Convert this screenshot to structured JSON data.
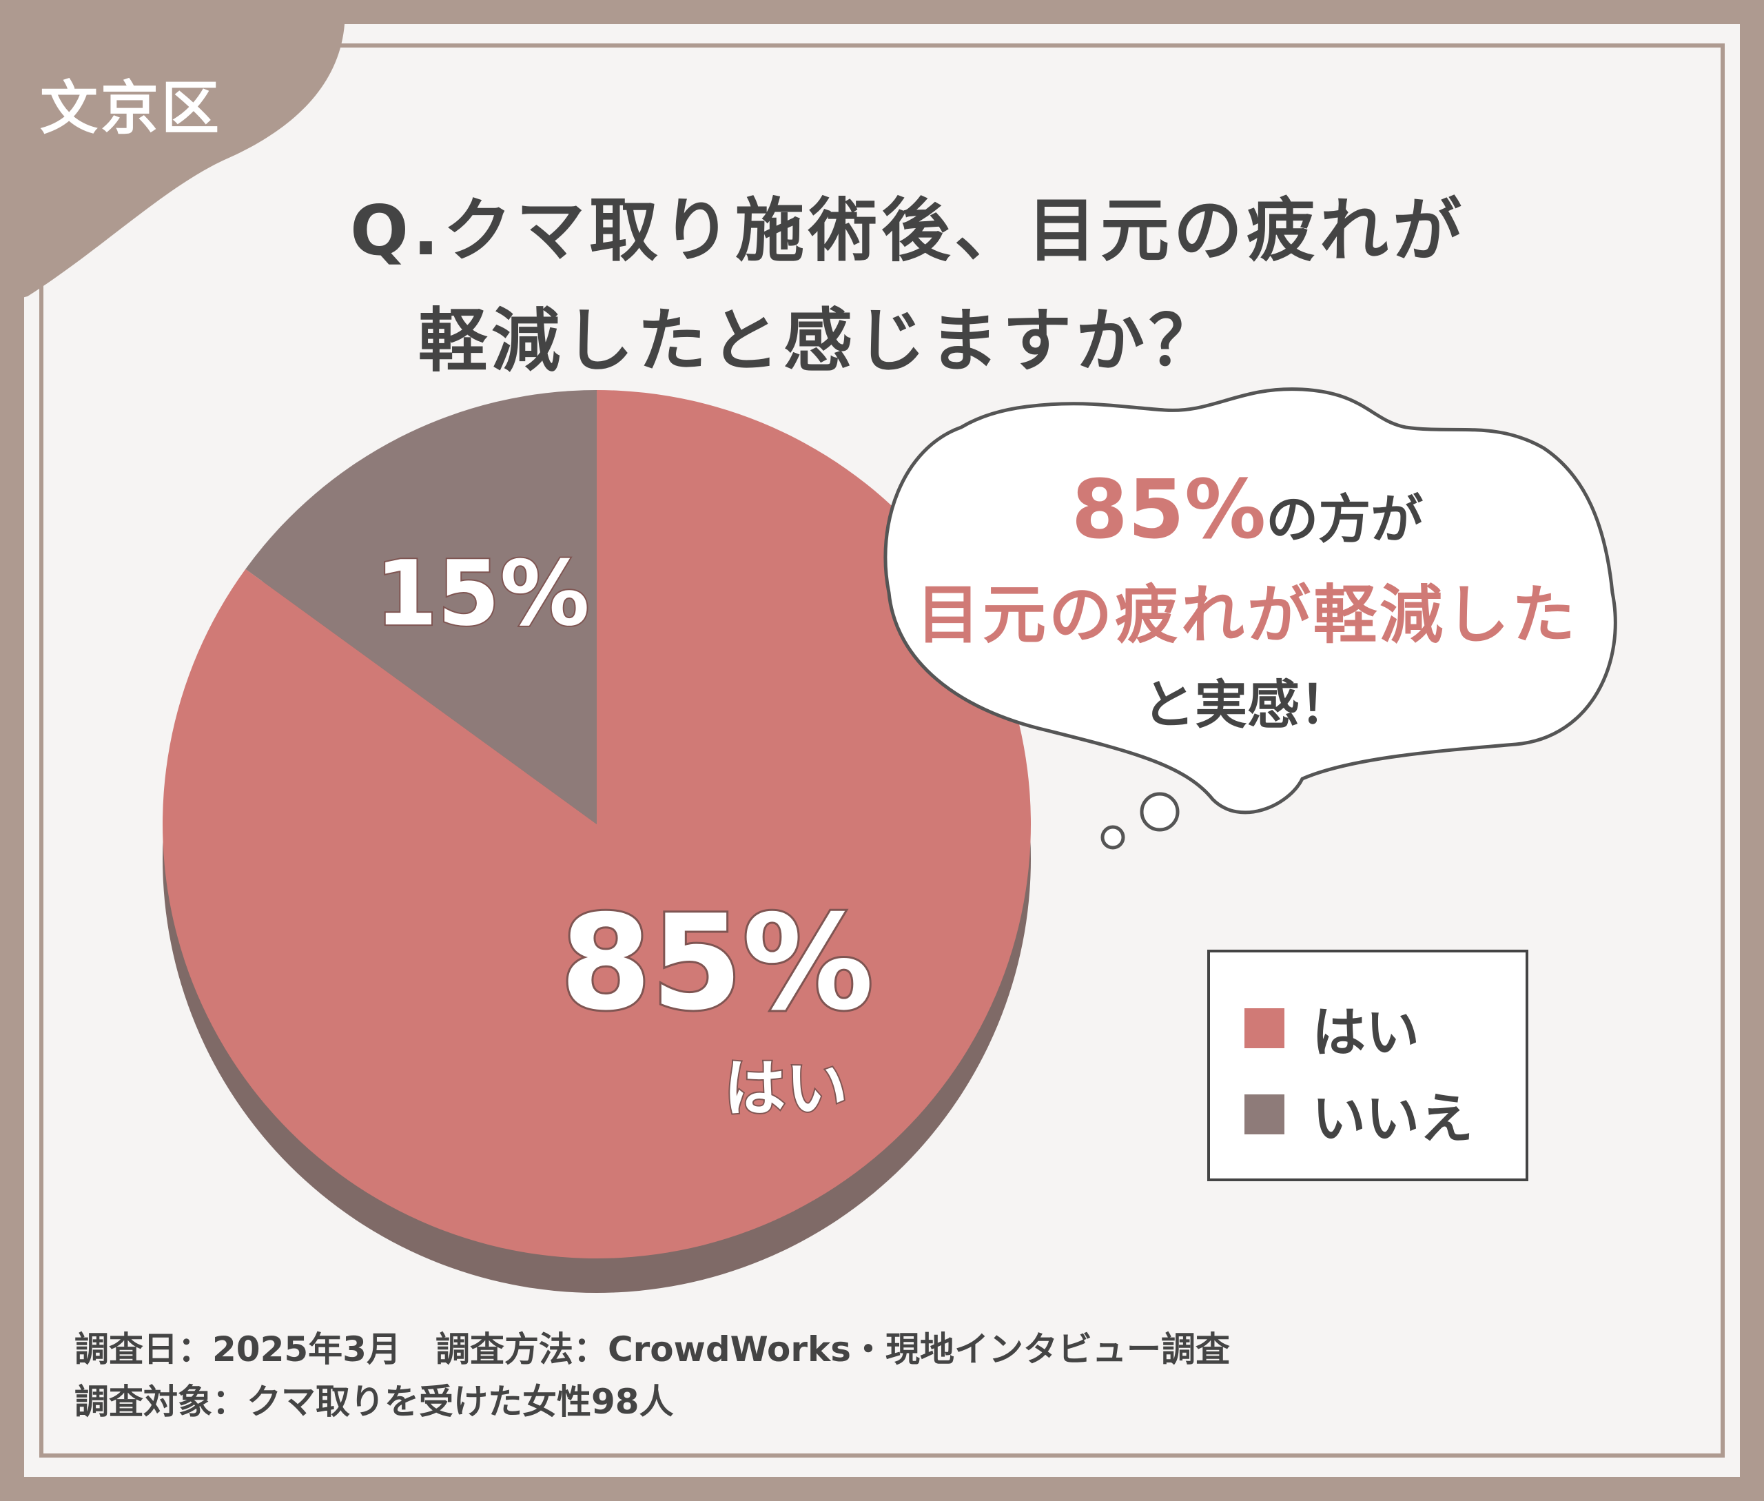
{
  "region": "文京区",
  "question": {
    "line1": "Q.クマ取り施術後、目元の疲れが",
    "line2": "軽減したと感じますか？"
  },
  "bubble": {
    "percent": "85%",
    "after_percent": "の方が",
    "highlight": "目元の疲れが軽減した",
    "closing": "と実感！"
  },
  "legend": {
    "items": [
      {
        "label": "はい",
        "color": "#d07a76"
      },
      {
        "label": "いいえ",
        "color": "#8e7b79"
      }
    ]
  },
  "footer": {
    "line1": "調査日：2025年3月　調査方法：CrowdWorks・現地インタビュー調査",
    "line2": "調査対象：クマ取りを受けた女性98人"
  },
  "chart_data": {
    "type": "pie",
    "categories": [
      "はい",
      "いいえ"
    ],
    "values": [
      85,
      15
    ],
    "labels": [
      "85%",
      "15%"
    ],
    "slice_label": "はい",
    "colors": [
      "#d07a76",
      "#8e7b79"
    ],
    "legend_position": "right"
  }
}
